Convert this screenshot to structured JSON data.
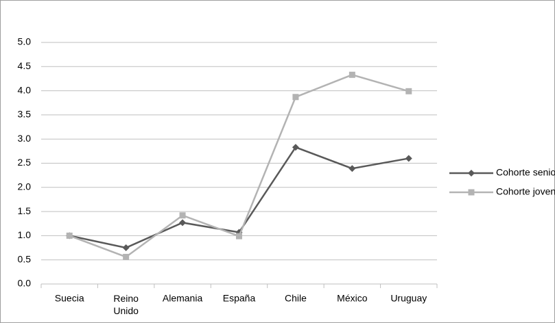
{
  "chart_data": {
    "type": "line",
    "categories": [
      "Suecia",
      "Reino Unido",
      "Alemania",
      "España",
      "Chile",
      "México",
      "Uruguay"
    ],
    "series": [
      {
        "name": "Cohorte senior",
        "color": "#595959",
        "marker": "diamond",
        "values": [
          1.0,
          0.75,
          1.27,
          1.07,
          2.83,
          2.39,
          2.6
        ]
      },
      {
        "name": "Cohorte joven",
        "color": "#b3b3b3",
        "marker": "square",
        "values": [
          1.0,
          0.56,
          1.42,
          0.99,
          3.87,
          4.33,
          3.99
        ]
      }
    ],
    "ylim": [
      0,
      5
    ],
    "yticks": [
      {
        "value": 0,
        "label": "0.0"
      },
      0.5,
      {
        "value": 1,
        "label": "1.0"
      },
      1.5,
      {
        "value": 2,
        "label": "2.0"
      },
      2.5,
      {
        "value": 3,
        "label": "3.0"
      },
      3.5,
      {
        "value": 4,
        "label": "4.0"
      },
      4.5,
      {
        "value": 5,
        "label": "5.0"
      }
    ],
    "grid": true,
    "legend": "right"
  }
}
